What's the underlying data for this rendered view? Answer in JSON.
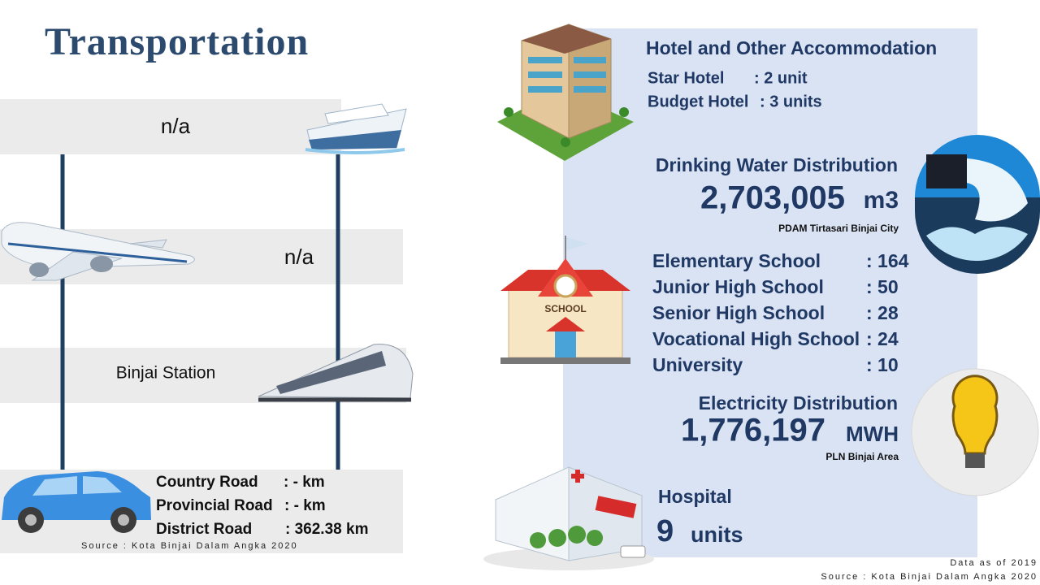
{
  "title": "Transportation",
  "transport": {
    "sea": "n/a",
    "air": "n/a",
    "rail": "Binjai Station",
    "roads": [
      {
        "label": "Country Road",
        "value": ": - km"
      },
      {
        "label": "Provincial Road",
        "value": ": - km"
      },
      {
        "label": "District Road",
        "value": ": 362.38 km"
      }
    ],
    "source": "Source : Kota Binjai Dalam Angka 2020"
  },
  "hotel": {
    "title": "Hotel and Other Accommodation",
    "items": [
      {
        "label": "Star Hotel",
        "value": ": 2 unit"
      },
      {
        "label": "Budget Hotel",
        "value": ": 3 units"
      }
    ]
  },
  "water": {
    "title": "Drinking Water Distribution",
    "value": "2,703,005",
    "unit": "m3",
    "source": "PDAM Tirtasari Binjai City"
  },
  "schools": [
    {
      "label": "Elementary School",
      "value": ": 164"
    },
    {
      "label": "Junior High School",
      "value": ": 50"
    },
    {
      "label": "Senior High School",
      "value": ": 28"
    },
    {
      "label": "Vocational High School",
      "value": ": 24"
    },
    {
      "label": "University",
      "value": ": 10"
    }
  ],
  "electricity": {
    "title": "Electricity Distribution",
    "value": "1,776,197",
    "unit": "MWH",
    "source": "PLN Binjai Area"
  },
  "hospital": {
    "title": "Hospital",
    "value": "9",
    "unit": "units"
  },
  "footer": {
    "note": "Data as of 2019",
    "source": "Source : Kota Binjai Dalam Angka 2020"
  }
}
